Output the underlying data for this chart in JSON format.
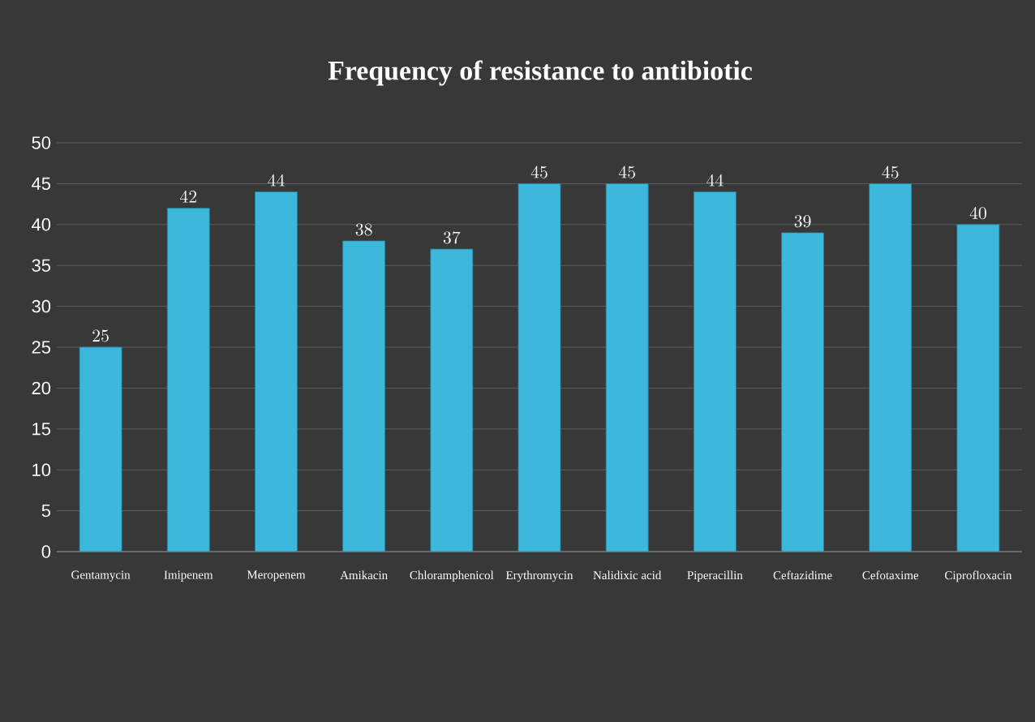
{
  "chart_data": {
    "type": "bar",
    "title": "Frequency of resistance to antibiotic",
    "categories": [
      "Gentamycin",
      "Imipenem",
      "Meropenem",
      "Amikacin",
      "Chloramphenicol",
      "Erythromycin",
      "Nalidixic acid",
      "Piperacillin",
      "Ceftazidime",
      "Cefotaxime",
      "Ciprofloxacin"
    ],
    "values": [
      25,
      42,
      44,
      38,
      37,
      45,
      45,
      44,
      39,
      45,
      40
    ],
    "color": "#3cb8dc",
    "ylim": [
      0,
      50
    ],
    "yticks": [
      0,
      5,
      10,
      15,
      20,
      25,
      30,
      35,
      40,
      45,
      50
    ],
    "grid": "y",
    "data_labels": true
  }
}
